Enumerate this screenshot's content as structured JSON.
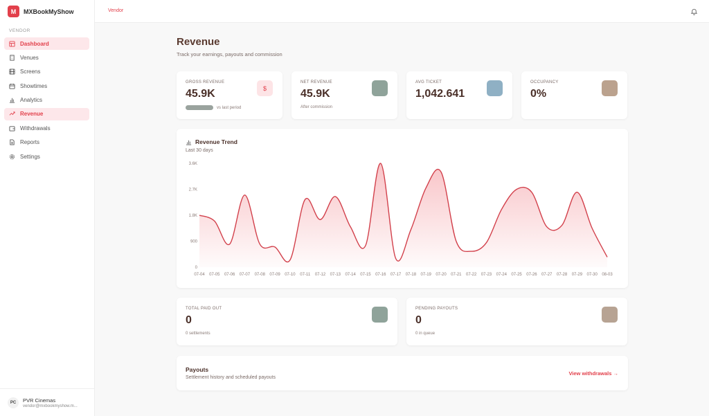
{
  "brand": {
    "name": "MXBookMyShow",
    "logo_letter": "M"
  },
  "sidebar": {
    "section_label": "VENDOR",
    "items": [
      {
        "label": "Dashboard",
        "icon": "grid-icon",
        "active": true
      },
      {
        "label": "Venues",
        "icon": "building-icon",
        "active": false
      },
      {
        "label": "Screens",
        "icon": "film-icon",
        "active": false
      },
      {
        "label": "Showtimes",
        "icon": "calendar-icon",
        "active": false
      },
      {
        "label": "Analytics",
        "icon": "bar-chart-icon",
        "active": false
      },
      {
        "label": "Revenue",
        "icon": "trend-icon",
        "active": true
      },
      {
        "label": "Withdrawals",
        "icon": "wallet-icon",
        "active": false
      },
      {
        "label": "Reports",
        "icon": "document-icon",
        "active": false
      },
      {
        "label": "Settings",
        "icon": "gear-icon",
        "active": false
      }
    ]
  },
  "user": {
    "initials": "PC",
    "name": "PVR Cinemas",
    "email": "vendor@mxbookmyshow.m..."
  },
  "topbar": {
    "breadcrumb": "Vendor"
  },
  "page": {
    "title": "Revenue",
    "subtitle": "Track your earnings, payouts and commission"
  },
  "stats": [
    {
      "label": "GROSS REVENUE",
      "value": "45.9K",
      "note": "vs last period",
      "icon": "dollar-icon",
      "icon_glyph": "$",
      "icon_bg": "#fde4e6",
      "icon_color": "#e2404b"
    },
    {
      "label": "NET REVENUE",
      "value": "45.9K",
      "note": "After commission",
      "icon": "wallet-icon",
      "icon_glyph": "",
      "icon_bg": "#8fa39a",
      "icon_color": "#ffffff"
    },
    {
      "label": "AVG TICKET",
      "value": "1,042.641",
      "note": "",
      "icon": "ticket-icon",
      "icon_glyph": "",
      "icon_bg": "#8fb0c4",
      "icon_color": "#ffffff"
    },
    {
      "label": "OCCUPANCY",
      "value": "0%",
      "note": "",
      "icon": "percent-icon",
      "icon_glyph": "",
      "icon_bg": "#bba28e",
      "icon_color": "#ffffff"
    }
  ],
  "trend": {
    "title": "Revenue Trend",
    "subtitle": "Last 30 days"
  },
  "chart_data": {
    "type": "area",
    "title": "Revenue Trend",
    "subtitle": "Last 30 days",
    "y_ticks": [
      "0",
      "900",
      "1.8K",
      "2.7K",
      "3.6K"
    ],
    "ylim": [
      0,
      3600
    ],
    "x": [
      "07-04",
      "07-05",
      "07-06",
      "07-07",
      "07-08",
      "07-09",
      "07-10",
      "07-11",
      "07-12",
      "07-13",
      "07-14",
      "07-15",
      "07-16",
      "07-17",
      "07-18",
      "07-19",
      "07-20",
      "07-21",
      "07-22",
      "07-23",
      "07-24",
      "07-25",
      "07-26",
      "07-27",
      "07-28",
      "07-29",
      "07-30",
      "08-03"
    ],
    "values": [
      1800,
      1600,
      800,
      2500,
      800,
      700,
      250,
      2350,
      1650,
      2450,
      1400,
      750,
      3600,
      300,
      1300,
      2750,
      3300,
      900,
      550,
      850,
      2000,
      2700,
      2600,
      1400,
      1450,
      2600,
      1350,
      350
    ],
    "extra_points": [
      [
        27.6,
        400
      ]
    ],
    "grid": false,
    "line_color": "#d2404b"
  },
  "payout_stats": [
    {
      "label": "TOTAL PAID OUT",
      "value": "0",
      "note": "0 settlements",
      "icon": "check-icon",
      "icon_bg": "#8fa39a"
    },
    {
      "label": "PENDING PAYOUTS",
      "value": "0",
      "note": "0 in queue",
      "icon": "clock-icon",
      "icon_bg": "#b7a393"
    }
  ],
  "payouts": {
    "title": "Payouts",
    "subtitle": "Settlement history and scheduled payouts",
    "link": "View withdrawals →"
  },
  "colors": {
    "accent": "#e2404b",
    "active_bg": "#fde7ea",
    "text_dark": "#4a2f28"
  }
}
